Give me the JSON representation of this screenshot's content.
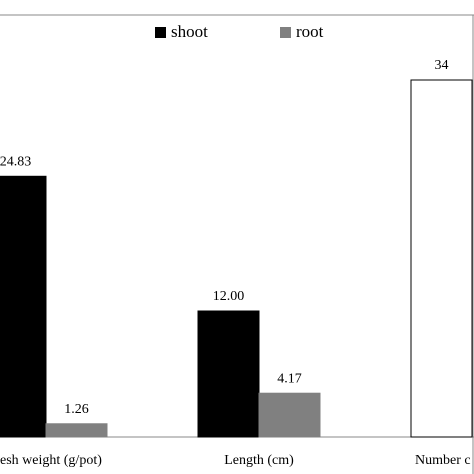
{
  "chart_data": {
    "type": "bar",
    "categories": [
      "esh weight (g/pot)",
      "Length (cm)",
      "Number c"
    ],
    "series": [
      {
        "name": "shoot",
        "color": "#000000",
        "point_colors": [
          "#000000",
          "#000000",
          "#ffffff"
        ],
        "values": [
          24.83,
          12.0,
          34
        ],
        "value_labels": [
          "24.83",
          "12.00",
          "34"
        ]
      },
      {
        "name": "root",
        "color": "#808080",
        "values": [
          1.26,
          4.17,
          null
        ],
        "value_labels": [
          "1.26",
          "4.17",
          null
        ]
      }
    ],
    "ylim": [
      0,
      40
    ]
  }
}
